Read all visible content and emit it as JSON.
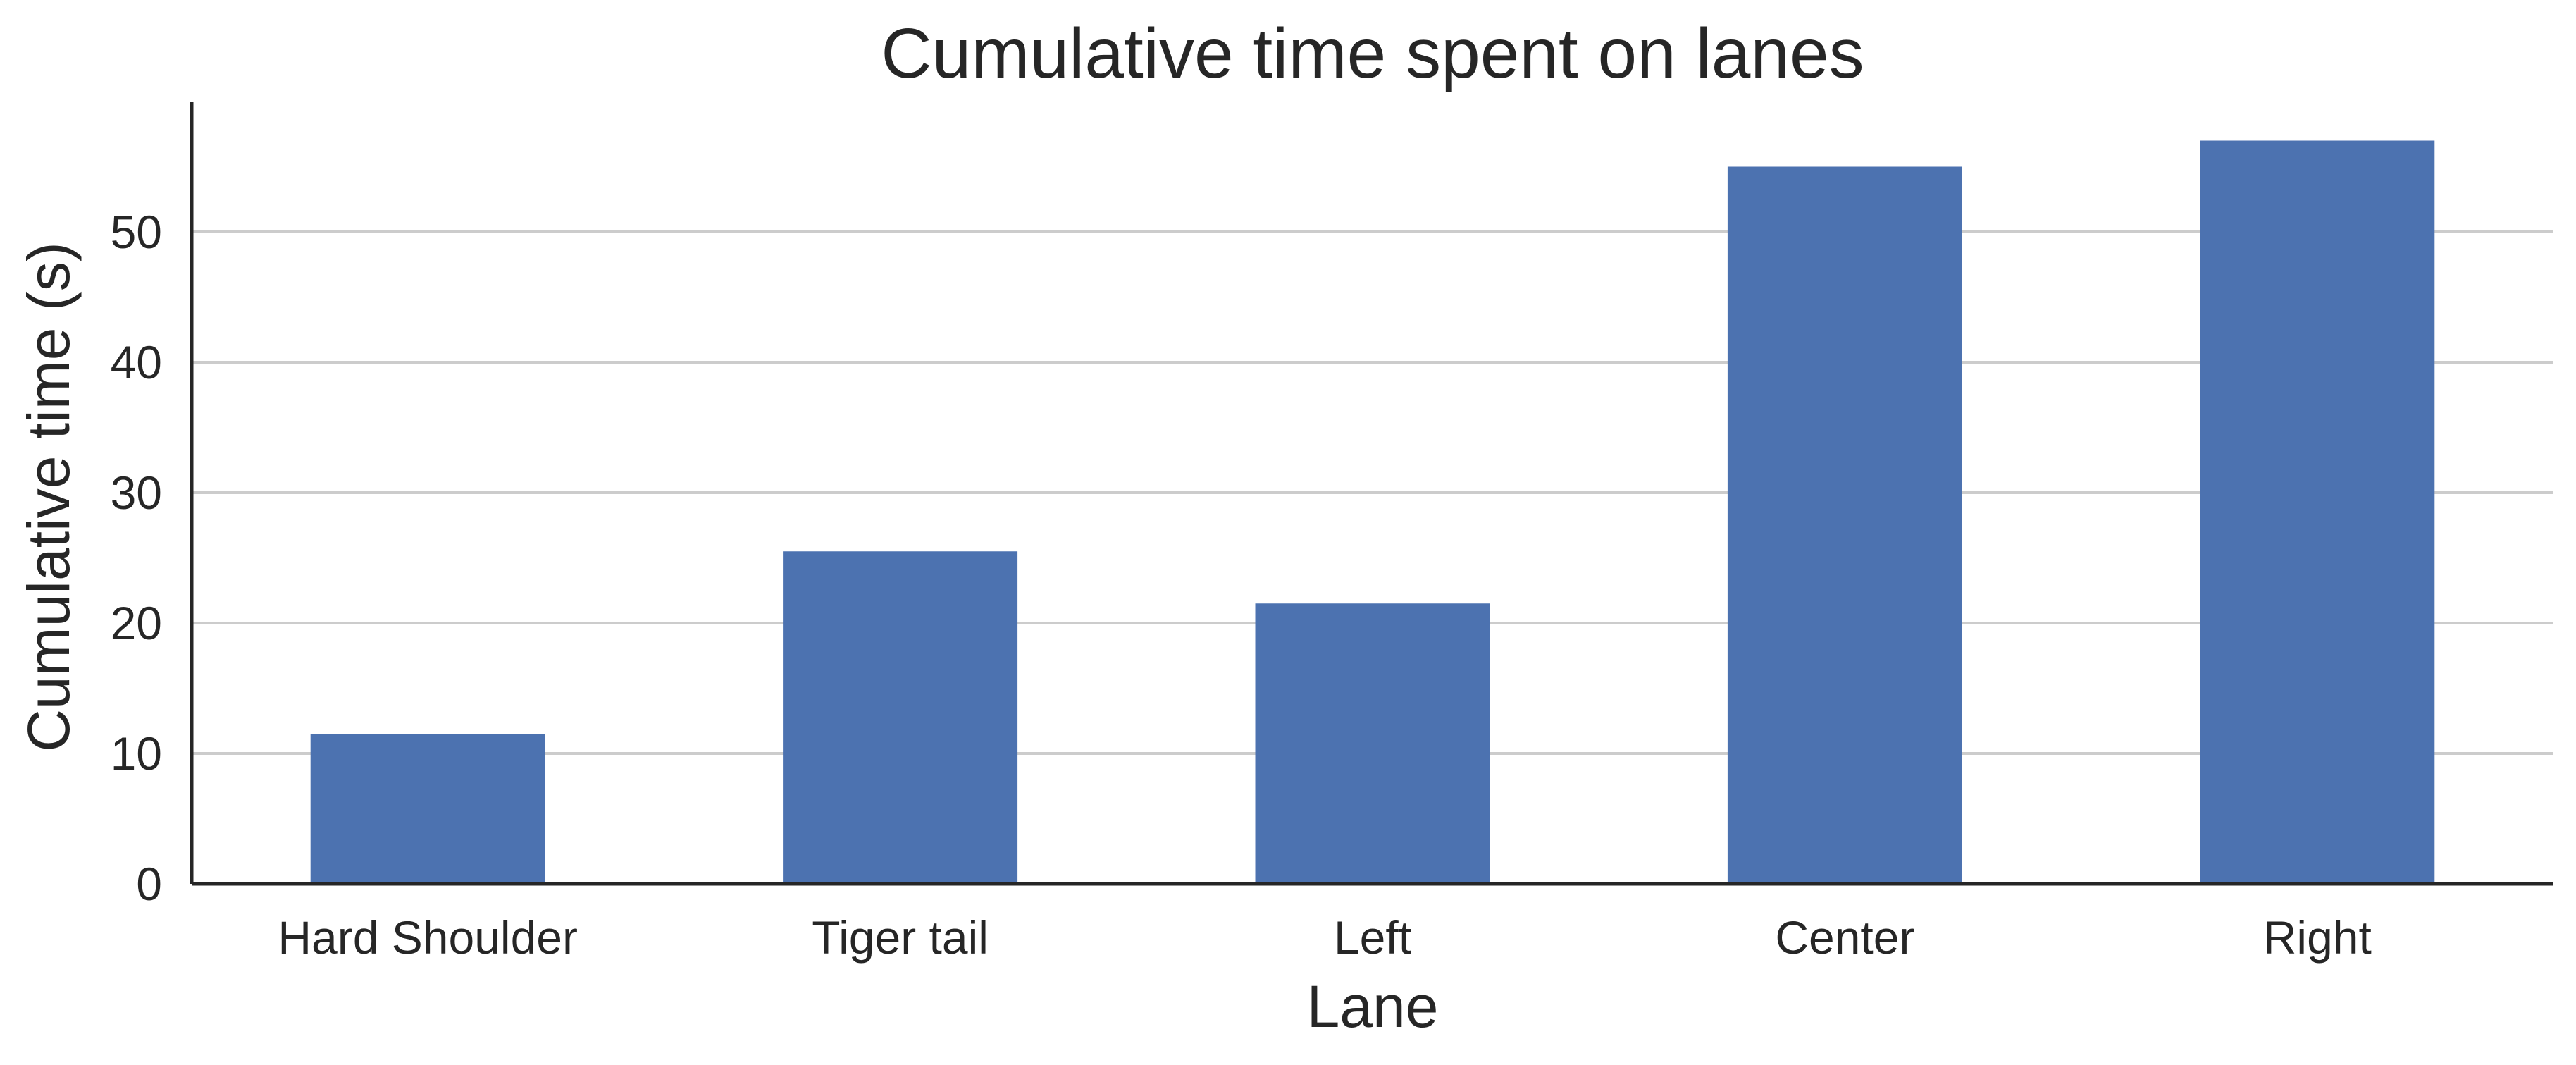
{
  "chart_data": {
    "type": "bar",
    "title": "Cumulative time spent on lanes",
    "xlabel": "Lane",
    "ylabel": "Cumulative time (s)",
    "categories": [
      "Hard Shoulder",
      "Tiger tail",
      "Left",
      "Center",
      "Right"
    ],
    "values": [
      11.5,
      25.5,
      21.5,
      55.0,
      57.0
    ],
    "ylim": [
      0,
      60
    ],
    "yticks": [
      "0",
      "10",
      "20",
      "30",
      "40",
      "50"
    ],
    "grid": "horizontal",
    "bar_color": "#4c72b0",
    "grid_color": "#cccccc",
    "text_color": "#262626"
  }
}
